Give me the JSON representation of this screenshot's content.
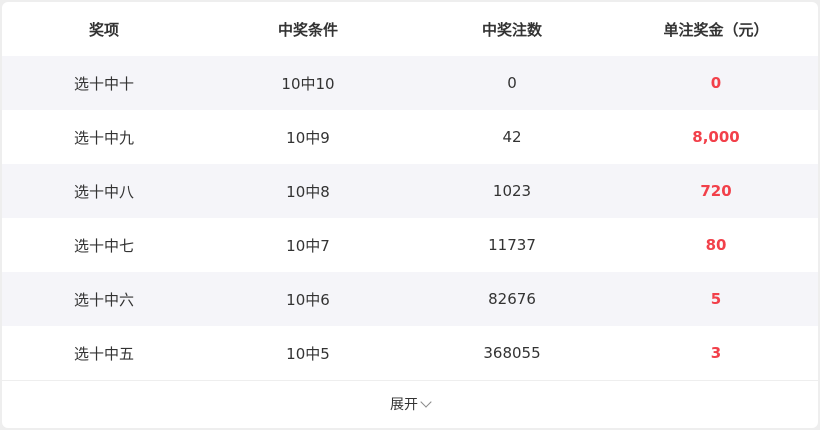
{
  "table": {
    "headers": [
      "奖项",
      "中奖条件",
      "中奖注数",
      "单注奖金（元）"
    ],
    "rows": [
      {
        "level": "选十中十",
        "condition": "10中10",
        "count": "0",
        "prize": "0"
      },
      {
        "level": "选十中九",
        "condition": "10中9",
        "count": "42",
        "prize": "8,000"
      },
      {
        "level": "选十中八",
        "condition": "10中8",
        "count": "1023",
        "prize": "720"
      },
      {
        "level": "选十中七",
        "condition": "10中7",
        "count": "11737",
        "prize": "80"
      },
      {
        "level": "选十中六",
        "condition": "10中6",
        "count": "82676",
        "prize": "5"
      },
      {
        "level": "选十中五",
        "condition": "10中5",
        "count": "368055",
        "prize": "3"
      }
    ]
  },
  "footer": {
    "expand_label": "展开",
    "expand_icon": "chevron-down-icon"
  },
  "colors": {
    "prize": "#f2404a",
    "alt_row": "#f5f5f9"
  }
}
